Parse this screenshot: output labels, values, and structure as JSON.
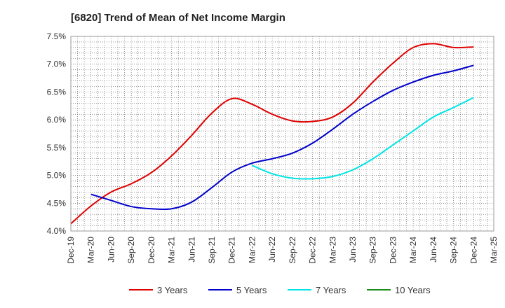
{
  "chart_data": {
    "type": "line",
    "title": "[6820]  Trend of Mean of Net Income Margin",
    "xlabel": "",
    "ylabel": "",
    "ylim": [
      4.0,
      7.5
    ],
    "grid": true,
    "legend_placement": "bottom",
    "x_ticks": [
      "Dec-19",
      "Mar-20",
      "Jun-20",
      "Sep-20",
      "Dec-20",
      "Mar-21",
      "Jun-21",
      "Sep-21",
      "Dec-21",
      "Mar-22",
      "Jun-22",
      "Sep-22",
      "Dec-22",
      "Mar-23",
      "Jun-23",
      "Sep-23",
      "Dec-23",
      "Mar-24",
      "Jun-24",
      "Sep-24",
      "Dec-24",
      "Mar-25"
    ],
    "y_ticks": [
      "4.0%",
      "4.5%",
      "5.0%",
      "5.5%",
      "6.0%",
      "6.5%",
      "7.0%",
      "7.5%"
    ],
    "series": [
      {
        "name": "3 Years",
        "color": "#e00000",
        "x": [
          "Dec-19",
          "Mar-20",
          "Jun-20",
          "Sep-20",
          "Dec-20",
          "Mar-21",
          "Jun-21",
          "Sep-21",
          "Dec-21",
          "Mar-22",
          "Jun-22",
          "Sep-22",
          "Dec-22",
          "Mar-23",
          "Jun-23",
          "Sep-23",
          "Dec-23",
          "Mar-24",
          "Jun-24",
          "Sep-24",
          "Dec-24"
        ],
        "values": [
          4.13,
          4.45,
          4.7,
          4.85,
          5.05,
          5.35,
          5.72,
          6.12,
          6.38,
          6.28,
          6.1,
          5.98,
          5.97,
          6.05,
          6.3,
          6.68,
          7.02,
          7.3,
          7.37,
          7.3,
          7.31
        ]
      },
      {
        "name": "5 Years",
        "color": "#0000cc",
        "x": [
          "Mar-20",
          "Jun-20",
          "Sep-20",
          "Dec-20",
          "Mar-21",
          "Jun-21",
          "Sep-21",
          "Dec-21",
          "Mar-22",
          "Jun-22",
          "Sep-22",
          "Dec-22",
          "Mar-23",
          "Jun-23",
          "Sep-23",
          "Dec-23",
          "Mar-24",
          "Jun-24",
          "Sep-24",
          "Dec-24"
        ],
        "values": [
          4.66,
          4.55,
          4.44,
          4.4,
          4.4,
          4.52,
          4.78,
          5.06,
          5.22,
          5.3,
          5.4,
          5.58,
          5.83,
          6.1,
          6.33,
          6.53,
          6.68,
          6.8,
          6.88,
          6.98
        ]
      },
      {
        "name": "7 Years",
        "color": "#00e5e5",
        "x": [
          "Mar-22",
          "Jun-22",
          "Sep-22",
          "Dec-22",
          "Mar-23",
          "Jun-23",
          "Sep-23",
          "Dec-23",
          "Mar-24",
          "Jun-24",
          "Sep-24",
          "Dec-24"
        ],
        "values": [
          5.18,
          5.03,
          4.95,
          4.94,
          4.98,
          5.1,
          5.3,
          5.55,
          5.8,
          6.05,
          6.22,
          6.4
        ]
      },
      {
        "name": "10 Years",
        "color": "#1a8a1a",
        "x": [],
        "values": []
      }
    ]
  }
}
